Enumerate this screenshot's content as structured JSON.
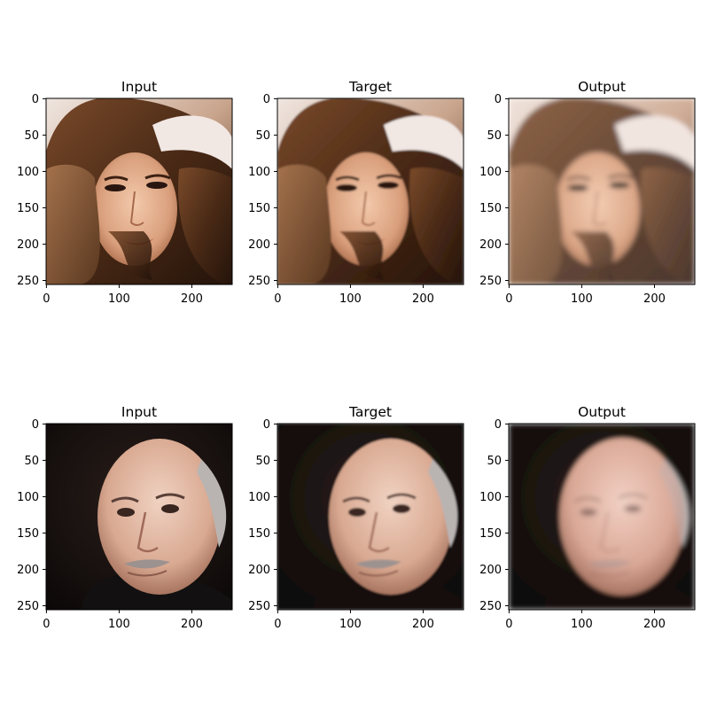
{
  "figure": {
    "rows": [
      {
        "subject": "woman",
        "panels": [
          {
            "title": "Input",
            "variant": "input"
          },
          {
            "title": "Target",
            "variant": "target"
          },
          {
            "title": "Output",
            "variant": "output"
          }
        ]
      },
      {
        "subject": "man",
        "panels": [
          {
            "title": "Input",
            "variant": "input"
          },
          {
            "title": "Target",
            "variant": "target"
          },
          {
            "title": "Output",
            "variant": "output"
          }
        ]
      }
    ],
    "x_ticks": [
      "0",
      "100",
      "200"
    ],
    "y_ticks": [
      "0",
      "50",
      "100",
      "150",
      "200",
      "250"
    ],
    "image_size": 256
  }
}
